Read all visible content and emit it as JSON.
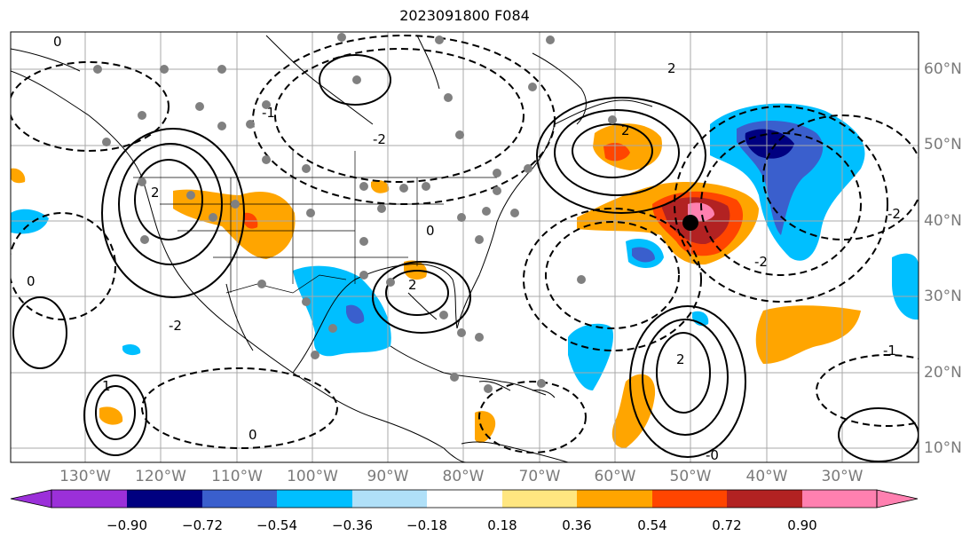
{
  "title": "2023091800 F084",
  "latitude_labels": [
    "60°N",
    "50°N",
    "40°N",
    "30°N",
    "20°N",
    "10°N"
  ],
  "longitude_labels": [
    "130°W",
    "120°W",
    "110°W",
    "100°W",
    "90°W",
    "80°W",
    "70°W",
    "60°W",
    "50°W",
    "40°W",
    "30°W"
  ],
  "contour_labels": [
    "-2",
    "-1",
    "0",
    "1",
    "2",
    "-0"
  ],
  "colorbar": {
    "ticks": [
      "−0.90",
      "−0.72",
      "−0.54",
      "−0.36",
      "−0.18",
      "0.18",
      "0.36",
      "0.54",
      "0.72",
      "0.90"
    ],
    "colors": [
      "#9b30d9",
      "#000080",
      "#3a5fcd",
      "#00bfff",
      "#b0e0f8",
      "#ffffff",
      "#ffe680",
      "#ffa500",
      "#ff4500",
      "#b22222",
      "#ff80b0",
      "#ff80b0"
    ]
  },
  "colors": {
    "land_outline": "#000000",
    "grid": "#a0a0a0",
    "marker": "#808080",
    "center_marker": "#000000"
  }
}
